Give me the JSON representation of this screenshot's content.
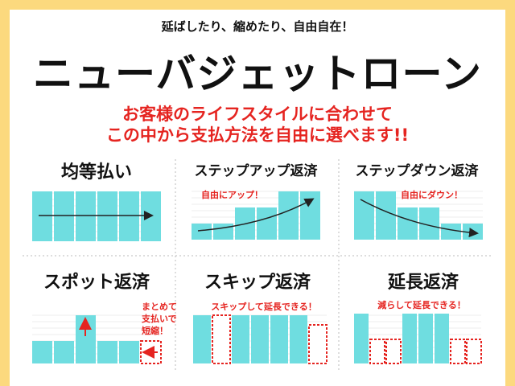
{
  "header": {
    "tagline": "延ばしたり、縮めたり、自由自在！",
    "title": "ニューバジェットローン",
    "lead": [
      "お客様のライフスタイルに合わせて",
      "この中から支払方法を自由に選べます!!"
    ]
  },
  "panels": [
    {
      "title": "均等払い"
    },
    {
      "title": "ステップアップ返済",
      "note": [
        "自由にアップ！"
      ]
    },
    {
      "title": "ステップダウン返済",
      "note": [
        "自由にダウン！"
      ]
    },
    {
      "title": "スポット返済",
      "note": [
        "まとめて",
        "支払いで",
        "短縮！"
      ]
    },
    {
      "title": "スキップ返済",
      "note": [
        "スキップして延長できる！"
      ]
    },
    {
      "title": "延長返済",
      "note": [
        "減らして延長できる！"
      ]
    }
  ]
}
